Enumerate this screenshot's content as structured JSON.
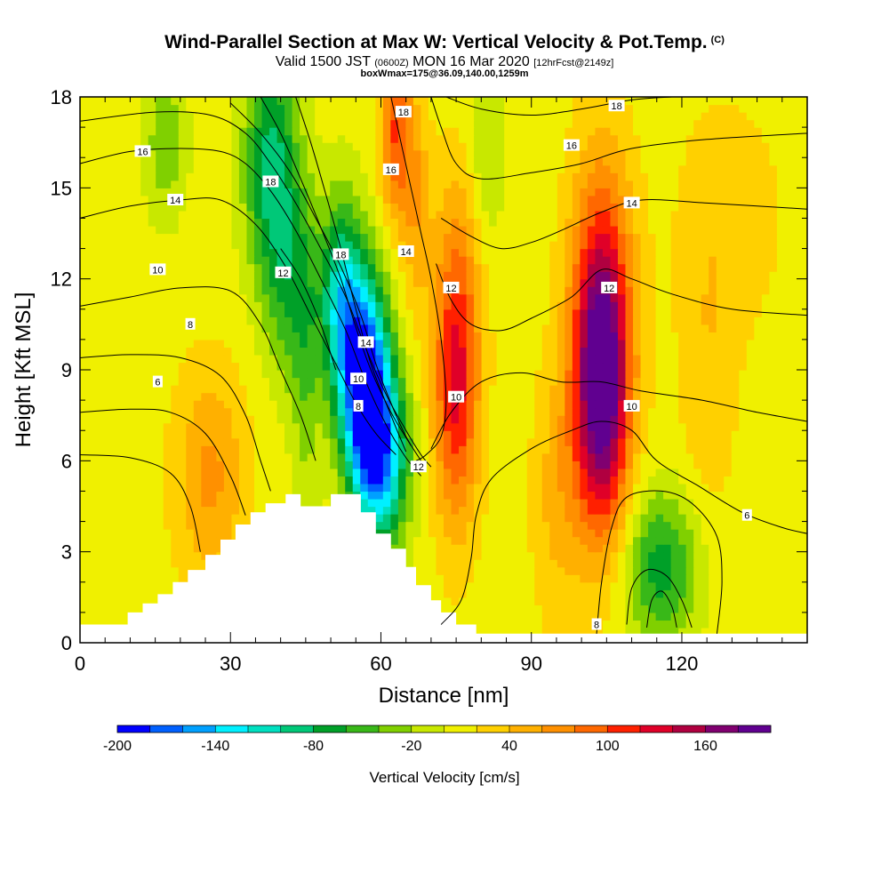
{
  "chart_data": {
    "type": "heatmap",
    "title": "Wind-Parallel Section at Max W: Vertical Velocity & Pot.Temp.",
    "copyright": "(C)",
    "subtitle_main_a": "Valid 1500 JST",
    "subtitle_z": "(0600Z)",
    "subtitle_main_b": "MON 16 Mar 2020",
    "subtitle_fcst": "[12hrFcst@2149z]",
    "subtitle2": "boxWmax=175@36.09,140.00,1259m",
    "xlabel": "Distance [nm]",
    "ylabel": "Height [Kft MSL]",
    "xlim": [
      0,
      145
    ],
    "ylim": [
      0,
      18
    ],
    "xticks": [
      0,
      30,
      60,
      90,
      120
    ],
    "yticks": [
      0,
      3,
      6,
      9,
      12,
      15,
      18
    ],
    "colorbar": {
      "label": "Vertical Velocity [cm/s]",
      "min": -200,
      "max": 190,
      "step": 20,
      "tick_values": [
        -200,
        -140,
        -80,
        -20,
        40,
        100,
        160
      ],
      "tick_labels": [
        "-200",
        "-140",
        "-80",
        "-20",
        "40",
        "100",
        "160"
      ],
      "colors": [
        "#0000ff",
        "#0060ff",
        "#00a0ff",
        "#00f0ff",
        "#00e0c0",
        "#00c878",
        "#00a028",
        "#38b818",
        "#80d000",
        "#c8e800",
        "#f0f000",
        "#ffd000",
        "#ffb000",
        "#ff9000",
        "#ff6800",
        "#ff2000",
        "#e00028",
        "#b00040",
        "#800070",
        "#600090"
      ]
    },
    "w_features": [
      {
        "x": 104,
        "y": 8.3,
        "sx": 4.0,
        "sy": 3.4,
        "w": 190
      },
      {
        "x": 75,
        "y": 8.4,
        "sx": 3.2,
        "sy": 3.2,
        "w": 115
      },
      {
        "x": 104,
        "y": 12.5,
        "sx": 4.5,
        "sy": 3.5,
        "w": 55
      },
      {
        "x": 57,
        "y": 8.3,
        "sx": 3.3,
        "sy": 2.6,
        "w": -220
      },
      {
        "x": 61,
        "y": 6.0,
        "sx": 3.5,
        "sy": 2.0,
        "w": -120
      },
      {
        "x": 52,
        "y": 11.2,
        "sx": 3.0,
        "sy": 2.4,
        "w": -120
      },
      {
        "x": 38,
        "y": 15.8,
        "sx": 3.8,
        "sy": 2.8,
        "w": -95
      },
      {
        "x": 42,
        "y": 12.0,
        "sx": 3.5,
        "sy": 2.5,
        "w": -60
      },
      {
        "x": 17,
        "y": 16.5,
        "sx": 3.0,
        "sy": 1.8,
        "w": -45
      },
      {
        "x": 116,
        "y": 2.5,
        "sx": 5.5,
        "sy": 1.8,
        "w": -80
      },
      {
        "x": 26,
        "y": 5.5,
        "sx": 5.0,
        "sy": 2.5,
        "w": 55
      },
      {
        "x": 63,
        "y": 16.8,
        "sx": 2.2,
        "sy": 2.0,
        "w": 90
      },
      {
        "x": 67,
        "y": 14.5,
        "sx": 2.0,
        "sy": 2.4,
        "w": 45
      },
      {
        "x": 76,
        "y": 13.0,
        "sx": 4.0,
        "sy": 2.6,
        "w": 30
      },
      {
        "x": 95,
        "y": 4.8,
        "sx": 3.5,
        "sy": 3.0,
        "w": 35
      },
      {
        "x": 125,
        "y": 8.5,
        "sx": 4.0,
        "sy": 4.0,
        "w": 25
      },
      {
        "x": 130,
        "y": 14.0,
        "sx": 8.0,
        "sy": 3.0,
        "w": 20
      },
      {
        "x": 45,
        "y": 8.5,
        "sx": 2.0,
        "sy": 3.5,
        "w": -35
      },
      {
        "x": 81,
        "y": 16.0,
        "sx": 2.5,
        "sy": 2.5,
        "w": -35
      }
    ],
    "terrain": [
      [
        0,
        0.6
      ],
      [
        9.5,
        0.6
      ],
      [
        9.5,
        1.0
      ],
      [
        12.5,
        1.0
      ],
      [
        12.5,
        1.3
      ],
      [
        15.5,
        1.3
      ],
      [
        15.5,
        1.6
      ],
      [
        18.5,
        1.6
      ],
      [
        18.5,
        2.0
      ],
      [
        21.5,
        2.0
      ],
      [
        21.5,
        2.4
      ],
      [
        25,
        2.4
      ],
      [
        25,
        2.9
      ],
      [
        28,
        2.9
      ],
      [
        28,
        3.4
      ],
      [
        31,
        3.4
      ],
      [
        31,
        3.9
      ],
      [
        34,
        3.9
      ],
      [
        34,
        4.3
      ],
      [
        37,
        4.3
      ],
      [
        37,
        4.6
      ],
      [
        41,
        4.6
      ],
      [
        41,
        4.9
      ],
      [
        44,
        4.9
      ],
      [
        44,
        4.5
      ],
      [
        50,
        4.5
      ],
      [
        50,
        4.9
      ],
      [
        56,
        4.9
      ],
      [
        56,
        4.3
      ],
      [
        59,
        4.3
      ],
      [
        59,
        3.6
      ],
      [
        62,
        3.6
      ],
      [
        62,
        3.1
      ],
      [
        65,
        3.1
      ],
      [
        65,
        2.5
      ],
      [
        67,
        2.5
      ],
      [
        67,
        1.9
      ],
      [
        70,
        1.9
      ],
      [
        70,
        1.4
      ],
      [
        72,
        1.4
      ],
      [
        72,
        1.0
      ],
      [
        75,
        1.0
      ],
      [
        75,
        0.6
      ],
      [
        79,
        0.6
      ],
      [
        79,
        0.3
      ],
      [
        145,
        0.3
      ]
    ],
    "contours": [
      {
        "label": "6",
        "points": [
          [
            0,
            6.2
          ],
          [
            10,
            6.1
          ],
          [
            18,
            5.6
          ],
          [
            22,
            4.5
          ],
          [
            24,
            3.0
          ]
        ],
        "labels": [],
        "label_at": [
          [
            133,
            4.2
          ]
        ]
      },
      {
        "label": "6",
        "points": [
          [
            0,
            7.6
          ],
          [
            10,
            7.7
          ],
          [
            18,
            7.6
          ],
          [
            25,
            6.9
          ],
          [
            30,
            5.5
          ],
          [
            33,
            4.2
          ]
        ],
        "labels": [],
        "label_at": [
          [
            15.5,
            8.6
          ]
        ]
      },
      {
        "label": "8",
        "points": [
          [
            0,
            9.4
          ],
          [
            10,
            9.5
          ],
          [
            20,
            9.4
          ],
          [
            28,
            8.8
          ],
          [
            33,
            7.5
          ],
          [
            36,
            6.0
          ],
          [
            38,
            5.0
          ]
        ],
        "labels": [],
        "label_at": [
          [
            22,
            10.5
          ]
        ]
      },
      {
        "label": "10",
        "points": [
          [
            0,
            11.1
          ],
          [
            10,
            11.4
          ],
          [
            20,
            11.7
          ],
          [
            30,
            11.6
          ],
          [
            36,
            10.5
          ],
          [
            40,
            9.0
          ],
          [
            44,
            7.5
          ],
          [
            47,
            6.0
          ]
        ],
        "labels": [],
        "label_at": [
          [
            15.5,
            12.3
          ]
        ]
      },
      {
        "label": "14",
        "points": [
          [
            0,
            14.0
          ],
          [
            10,
            14.4
          ],
          [
            20,
            14.6
          ],
          [
            28,
            14.6
          ],
          [
            35,
            13.8
          ],
          [
            41,
            12.4
          ],
          [
            46,
            10.8
          ],
          [
            51,
            9.2
          ],
          [
            55,
            7.9
          ],
          [
            59,
            6.9
          ],
          [
            63,
            6.2
          ]
        ],
        "labels": [],
        "label_at": [
          [
            19,
            14.6
          ]
        ]
      },
      {
        "label": "16",
        "points": [
          [
            0,
            15.8
          ],
          [
            10,
            16.2
          ],
          [
            20,
            16.3
          ],
          [
            28,
            16.2
          ],
          [
            33,
            15.8
          ],
          [
            38,
            14.9
          ],
          [
            43,
            13.6
          ],
          [
            48,
            12.0
          ],
          [
            53,
            10.3
          ],
          [
            57,
            8.6
          ],
          [
            61,
            7.2
          ],
          [
            65,
            6.1
          ],
          [
            68,
            5.5
          ]
        ],
        "labels": [],
        "label_at": [
          [
            12.5,
            16.2
          ]
        ]
      },
      {
        "label": "18",
        "points": [
          [
            0,
            17.2
          ],
          [
            15,
            17.5
          ],
          [
            26,
            17.4
          ],
          [
            33,
            16.8
          ],
          [
            38,
            15.8
          ],
          [
            43,
            14.5
          ],
          [
            48,
            13.0
          ],
          [
            53,
            11.4
          ],
          [
            57,
            9.7
          ],
          [
            61,
            8.2
          ],
          [
            65,
            7.0
          ],
          [
            68,
            6.2
          ],
          [
            70,
            5.8
          ]
        ],
        "labels": [],
        "label_at": [
          [
            38,
            15.2
          ],
          [
            52,
            12.8
          ]
        ]
      },
      {
        "label": "14",
        "points": [
          [
            30,
            17.8
          ],
          [
            36,
            16.8
          ],
          [
            42,
            15.5
          ],
          [
            47,
            14.0
          ],
          [
            52,
            12.4
          ],
          [
            56,
            10.8
          ],
          [
            59,
            9.2
          ],
          [
            62,
            7.9
          ],
          [
            65,
            6.8
          ],
          [
            68,
            6.0
          ]
        ],
        "labels": [],
        "label_at": [
          [
            57,
            9.9
          ]
        ]
      },
      {
        "label": "10",
        "points": [
          [
            36,
            18.0
          ],
          [
            40,
            16.8
          ],
          [
            44,
            15.3
          ],
          [
            48,
            13.7
          ],
          [
            52,
            12.0
          ],
          [
            55,
            10.4
          ],
          [
            58,
            9.0
          ],
          [
            62,
            7.6
          ],
          [
            66,
            6.5
          ]
        ],
        "labels": [],
        "label_at": [
          [
            55.5,
            8.7
          ]
        ]
      },
      {
        "label": "8",
        "points": [
          [
            43,
            18.0
          ],
          [
            46,
            16.5
          ],
          [
            49,
            14.8
          ],
          [
            52,
            13.0
          ],
          [
            55,
            11.0
          ],
          [
            58,
            9.2
          ],
          [
            62,
            7.5
          ],
          [
            65,
            6.3
          ]
        ],
        "labels": [],
        "label_at": [
          [
            55.5,
            7.8
          ]
        ]
      },
      {
        "label": "12",
        "points": [
          [
            40,
            13.0
          ],
          [
            44,
            12.0
          ],
          [
            48,
            10.5
          ],
          [
            51,
            9.0
          ]
        ],
        "labels": [],
        "label_at": [
          [
            40.5,
            12.2
          ],
          [
            67.5,
            5.8
          ]
        ]
      },
      {
        "label": "12",
        "points": [
          [
            62,
            18
          ],
          [
            64,
            16.5
          ],
          [
            66,
            15.0
          ],
          [
            68,
            13.5
          ],
          [
            70,
            12.0
          ],
          [
            72,
            10.0
          ],
          [
            73,
            8.0
          ],
          [
            72,
            6.8
          ],
          [
            69,
            6.2
          ],
          [
            67,
            6.0
          ]
        ],
        "labels": [],
        "label_at": [
          [
            74,
            11.7
          ]
        ]
      },
      {
        "label": "16",
        "points": [
          [
            70,
            18
          ],
          [
            72,
            17.0
          ],
          [
            75,
            15.8
          ],
          [
            80,
            15.3
          ],
          [
            90,
            15.5
          ],
          [
            100,
            15.8
          ],
          [
            110,
            16.3
          ],
          [
            125,
            16.6
          ],
          [
            145,
            16.8
          ]
        ],
        "labels": [],
        "label_at": [
          [
            62,
            15.6
          ],
          [
            98,
            16.4
          ]
        ]
      },
      {
        "label": "18",
        "points": [
          [
            73,
            18.0
          ],
          [
            80,
            17.6
          ],
          [
            90,
            17.4
          ],
          [
            100,
            17.6
          ],
          [
            110,
            17.9
          ],
          [
            118,
            18.0
          ]
        ],
        "labels": [],
        "label_at": [
          [
            64.5,
            17.5
          ],
          [
            107,
            17.7
          ]
        ]
      },
      {
        "label": "14",
        "points": [
          [
            72,
            14.0
          ],
          [
            78,
            13.4
          ],
          [
            84,
            13.0
          ],
          [
            90,
            13.2
          ],
          [
            96,
            13.6
          ],
          [
            104,
            14.2
          ],
          [
            112,
            14.6
          ],
          [
            125,
            14.5
          ],
          [
            145,
            14.3
          ]
        ],
        "labels": [],
        "label_at": [
          [
            65,
            12.9
          ],
          [
            110,
            14.5
          ]
        ]
      },
      {
        "label": "12",
        "points": [
          [
            71,
            12.5
          ],
          [
            74,
            11.3
          ],
          [
            78,
            10.5
          ],
          [
            84,
            10.3
          ],
          [
            90,
            10.7
          ],
          [
            98,
            11.4
          ],
          [
            104,
            12.3
          ],
          [
            110,
            12.0
          ],
          [
            118,
            11.5
          ],
          [
            130,
            11.0
          ],
          [
            145,
            10.8
          ]
        ],
        "labels": [],
        "label_at": [
          [
            105.5,
            11.7
          ]
        ]
      },
      {
        "label": "10",
        "points": [
          [
            70,
            6.4
          ],
          [
            74,
            7.6
          ],
          [
            80,
            8.6
          ],
          [
            88,
            8.9
          ],
          [
            96,
            8.6
          ],
          [
            104,
            8.6
          ],
          [
            112,
            8.3
          ],
          [
            124,
            8.0
          ],
          [
            135,
            7.6
          ],
          [
            145,
            7.3
          ]
        ],
        "labels": [],
        "label_at": [
          [
            75,
            8.1
          ],
          [
            110,
            7.8
          ]
        ]
      },
      {
        "label": "8",
        "points": [
          [
            72,
            0.6
          ],
          [
            76,
            1.4
          ],
          [
            78,
            2.8
          ],
          [
            79,
            4.2
          ],
          [
            82,
            5.4
          ],
          [
            90,
            6.4
          ],
          [
            98,
            7.0
          ],
          [
            104,
            7.3
          ],
          [
            110,
            7.0
          ],
          [
            115,
            6.0
          ],
          [
            123,
            5.2
          ],
          [
            132,
            4.3
          ],
          [
            140,
            3.8
          ],
          [
            145,
            3.6
          ]
        ],
        "labels": [],
        "label_at": [
          [
            103,
            0.6
          ]
        ]
      },
      {
        "label": "8",
        "points": [
          [
            103,
            0.3
          ],
          [
            104,
            2.0
          ],
          [
            106,
            3.8
          ],
          [
            109,
            4.8
          ],
          [
            116,
            5.0
          ],
          [
            122,
            4.6
          ],
          [
            127,
            3.5
          ],
          [
            128,
            2.0
          ],
          [
            127,
            0.3
          ]
        ],
        "labels": [],
        "label_at": []
      },
      {
        "label": "6",
        "points": [
          [
            109,
            0.6
          ],
          [
            110,
            1.8
          ],
          [
            113,
            2.4
          ],
          [
            117,
            2.2
          ],
          [
            120,
            1.4
          ],
          [
            122,
            0.5
          ]
        ],
        "labels": [],
        "label_at": []
      },
      {
        "label": "6",
        "points": [
          [
            113,
            0.5
          ],
          [
            114,
            1.4
          ],
          [
            116,
            1.7
          ],
          [
            118,
            1.2
          ],
          [
            119,
            0.5
          ]
        ],
        "labels": [],
        "label_at": []
      }
    ]
  }
}
